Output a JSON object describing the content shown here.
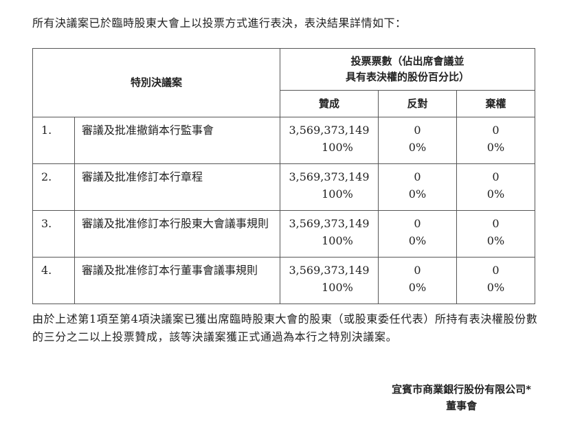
{
  "intro": "所有決議案已於臨時股東大會上以投票方式進行表決，表決結果詳情如下：",
  "table": {
    "header_resolution": "特別決議案",
    "header_votes_line1": "投票票數（佔出席會議並",
    "header_votes_line2": "具有表決權的股份百分比）",
    "col_for": "贊成",
    "col_against": "反對",
    "col_abstain": "棄權",
    "rows": [
      {
        "no": "1.",
        "title": "審議及批准撤銷本行監事會",
        "for": "3,569,373,149",
        "for_pct": "100%",
        "against": "0",
        "against_pct": "0%",
        "abstain": "0",
        "abstain_pct": "0%"
      },
      {
        "no": "2.",
        "title": "審議及批准修訂本行章程",
        "for": "3,569,373,149",
        "for_pct": "100%",
        "against": "0",
        "against_pct": "0%",
        "abstain": "0",
        "abstain_pct": "0%"
      },
      {
        "no": "3.",
        "title": "審議及批准修訂本行股東大會議事規則",
        "for": "3,569,373,149",
        "for_pct": "100%",
        "against": "0",
        "against_pct": "0%",
        "abstain": "0",
        "abstain_pct": "0%"
      },
      {
        "no": "4.",
        "title": "審議及批准修訂本行董事會議事規則",
        "for": "3,569,373,149",
        "for_pct": "100%",
        "against": "0",
        "against_pct": "0%",
        "abstain": "0",
        "abstain_pct": "0%"
      }
    ]
  },
  "conclusion": "由於上述第1項至第4項決議案已獲出席臨時股東大會的股東（或股東委任代表）所持有表決權股份數的三分之二以上投票贊成，該等決議案獲正式通過為本行之特別決議案。",
  "signature": {
    "company": "宜賓市商業銀行股份有限公司*",
    "board": "董事會"
  }
}
